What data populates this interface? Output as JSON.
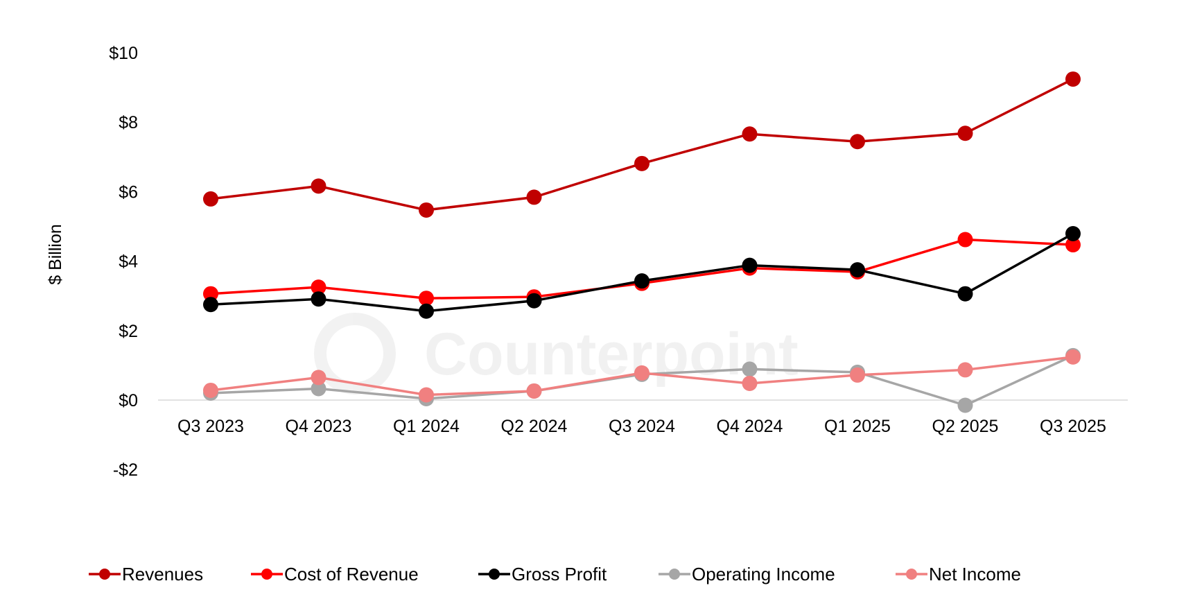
{
  "chart_data": {
    "type": "line",
    "title": "",
    "ylabel": "$ Billion",
    "xlabel": "",
    "ylim": [
      -2,
      10
    ],
    "yticks": [
      -2,
      0,
      2,
      4,
      6,
      8,
      10
    ],
    "ytick_labels": [
      "-$2",
      "$0",
      "$2",
      "$4",
      "$6",
      "$8",
      "$10"
    ],
    "grid": false,
    "legend_position": "bottom",
    "categories": [
      "Q3 2023",
      "Q4 2023",
      "Q1 2024",
      "Q2 2024",
      "Q3 2024",
      "Q4 2024",
      "Q1 2025",
      "Q2 2025",
      "Q3 2025"
    ],
    "series": [
      {
        "name": "Revenues",
        "color": "#C00000",
        "values": [
          5.79,
          6.16,
          5.47,
          5.84,
          6.81,
          7.66,
          7.44,
          7.68,
          9.24
        ]
      },
      {
        "name": "Cost of Revenue",
        "color": "#FF0000",
        "values": [
          3.06,
          3.25,
          2.93,
          2.97,
          3.36,
          3.8,
          3.69,
          4.62,
          4.47
        ]
      },
      {
        "name": "Gross Profit",
        "color": "#000000",
        "values": [
          2.75,
          2.91,
          2.56,
          2.86,
          3.43,
          3.88,
          3.75,
          3.06,
          4.79
        ]
      },
      {
        "name": "Operating Income",
        "color": "#A6A6A6",
        "values": [
          0.2,
          0.33,
          0.04,
          0.26,
          0.74,
          0.89,
          0.8,
          -0.15,
          1.28
        ]
      },
      {
        "name": "Net Income",
        "color": "#F08080",
        "values": [
          0.28,
          0.65,
          0.15,
          0.26,
          0.78,
          0.48,
          0.72,
          0.87,
          1.24
        ]
      }
    ]
  },
  "watermark": {
    "text": "Counterpoint"
  }
}
